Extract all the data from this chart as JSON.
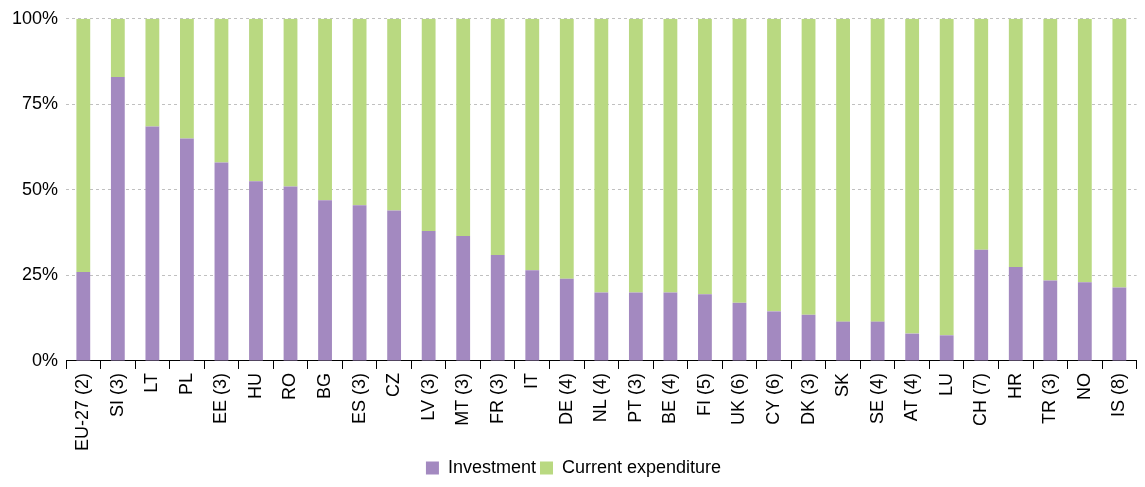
{
  "chart_data": {
    "type": "bar",
    "stacked": true,
    "categories": [
      "EU-27 (2)",
      "SI (3)",
      "LT",
      "PL",
      "EE (3)",
      "HU",
      "RO",
      "BG",
      "ES (3)",
      "CZ",
      "LV (3)",
      "MT (3)",
      "FR (3)",
      "IT",
      "DE (4)",
      "NL (4)",
      "PT (3)",
      "BE (4)",
      "FI (5)",
      "UK (6)",
      "CY (6)",
      "DK (3)",
      "SK",
      "SE (4)",
      "AT (4)",
      "LU",
      "CH (7)",
      "HR",
      "TR (3)",
      "NO",
      "IS (8)"
    ],
    "series": [
      {
        "name": "Investment",
        "color": "#a389c0",
        "values": [
          26,
          83,
          68.5,
          65,
          58,
          52.5,
          51,
          47,
          45.5,
          44,
          38,
          36.5,
          31,
          26.5,
          24,
          20,
          20,
          20,
          19.5,
          17,
          14.5,
          13.5,
          11.5,
          11.5,
          8,
          7.5,
          32.5,
          27.5,
          23.5,
          23,
          21.5
        ]
      },
      {
        "name": "Current expenditure",
        "color": "#b9d981",
        "values": [
          74,
          17,
          31.5,
          35,
          42,
          47.5,
          49,
          53,
          54.5,
          56,
          62,
          63.5,
          69,
          73.5,
          76,
          80,
          80,
          80,
          80.5,
          83,
          85.5,
          86.5,
          88.5,
          88.5,
          92,
          92.5,
          67.5,
          72.5,
          76.5,
          77,
          78.5
        ]
      }
    ],
    "ylim": [
      0,
      100
    ],
    "yticks": [
      {
        "value": 0,
        "label": "0%"
      },
      {
        "value": 25,
        "label": "25%"
      },
      {
        "value": 50,
        "label": "50%"
      },
      {
        "value": 75,
        "label": "75%"
      },
      {
        "value": 100,
        "label": "100%"
      }
    ],
    "grid": "y",
    "legend": "bottom"
  }
}
